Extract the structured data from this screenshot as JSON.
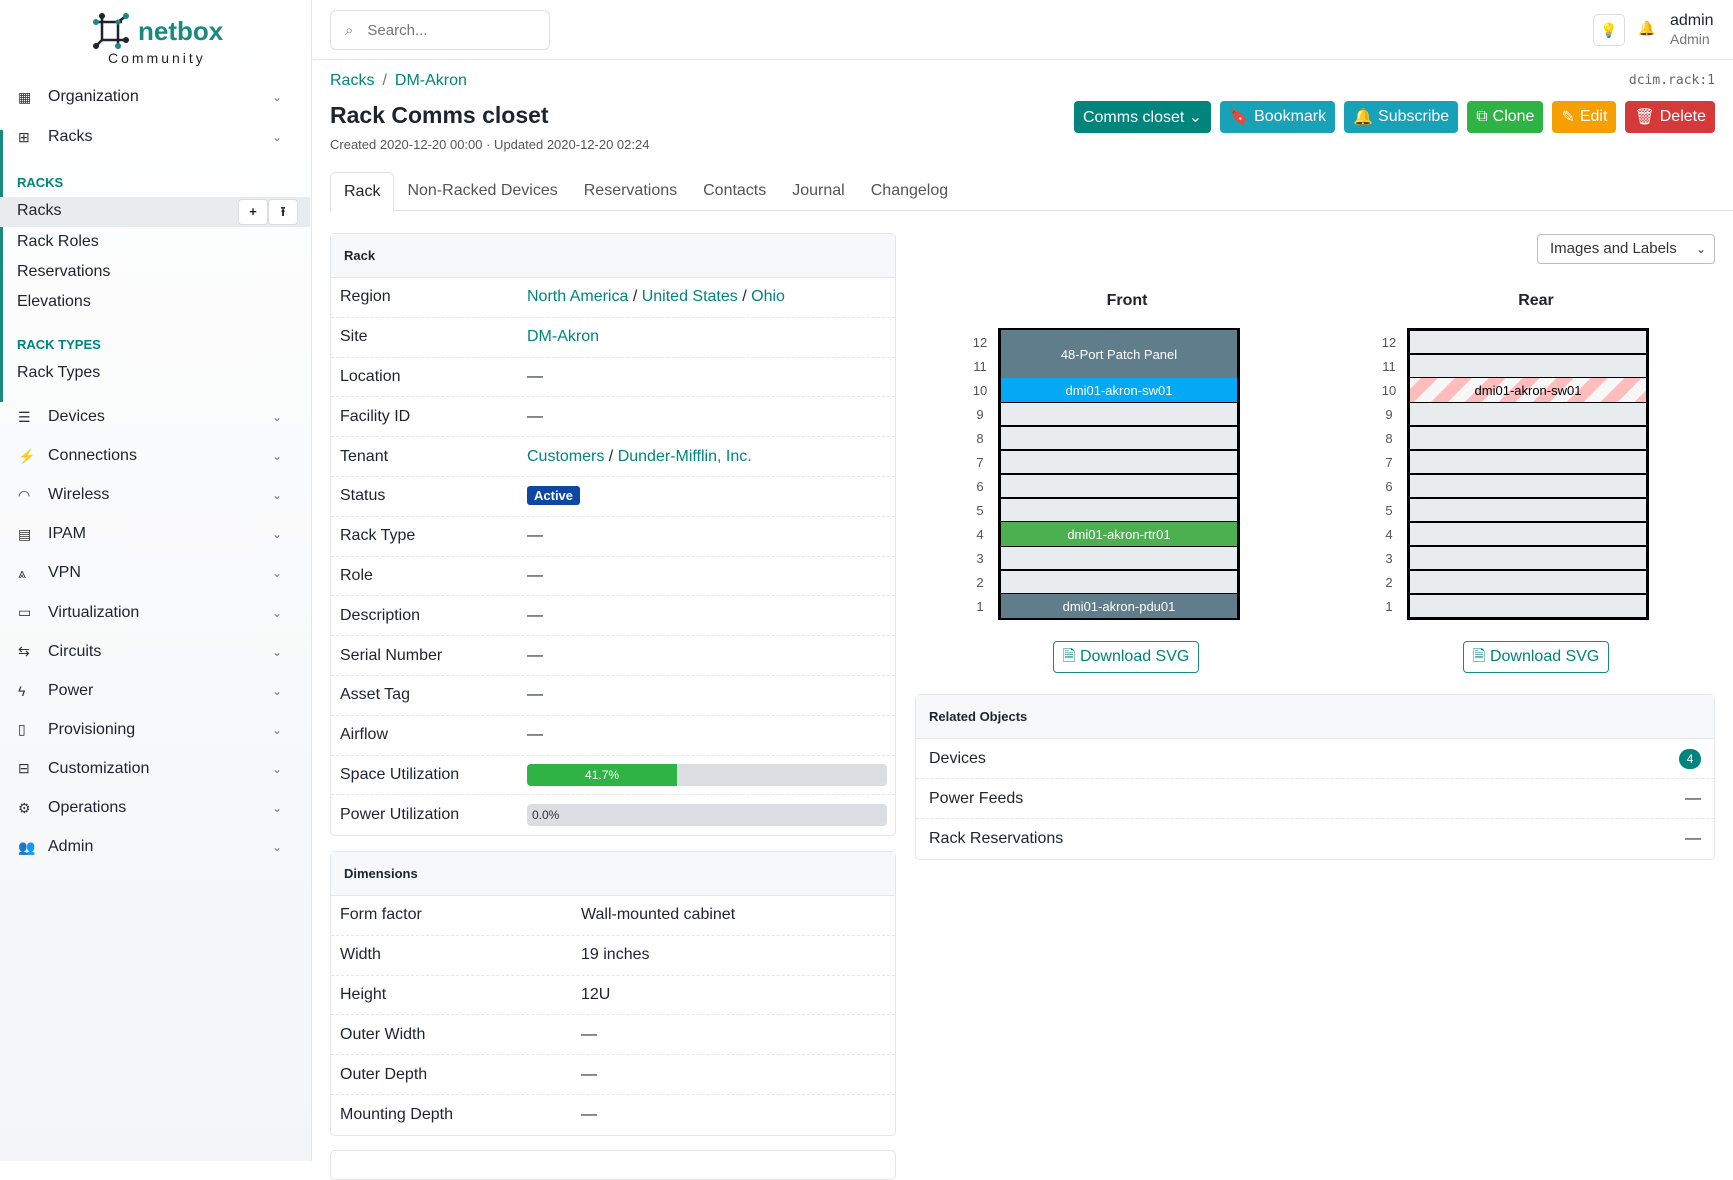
{
  "brand": {
    "name": "netbox",
    "edition": "Community"
  },
  "sidebar": {
    "groups_top": [
      {
        "label": "Organization",
        "icon": "building-icon"
      },
      {
        "label": "Racks",
        "icon": "rack-icon"
      }
    ],
    "racks_section": "RACKS",
    "racks_items": [
      "Racks",
      "Rack Roles",
      "Reservations",
      "Elevations"
    ],
    "rack_types_section": "RACK TYPES",
    "rack_types_items": [
      "Rack Types"
    ],
    "groups_bottom": [
      {
        "label": "Devices",
        "icon": "server-icon"
      },
      {
        "label": "Connections",
        "icon": "plug-icon"
      },
      {
        "label": "Wireless",
        "icon": "wifi-icon"
      },
      {
        "label": "IPAM",
        "icon": "counter-icon"
      },
      {
        "label": "VPN",
        "icon": "tunnel-icon"
      },
      {
        "label": "Virtualization",
        "icon": "monitor-icon"
      },
      {
        "label": "Circuits",
        "icon": "transit-icon"
      },
      {
        "label": "Power",
        "icon": "flash-icon"
      },
      {
        "label": "Provisioning",
        "icon": "file-document-icon"
      },
      {
        "label": "Customization",
        "icon": "toolbox-icon"
      },
      {
        "label": "Operations",
        "icon": "cogs-icon"
      },
      {
        "label": "Admin",
        "icon": "account-multiple-icon"
      }
    ],
    "add_label": "+",
    "import_label": "⭱"
  },
  "header": {
    "search_placeholder": "Search...",
    "user": "admin",
    "role": "Admin"
  },
  "breadcrumb": [
    "Racks",
    "DM-Akron"
  ],
  "object_id": "dcim.rack:1",
  "title": "Rack Comms closet",
  "meta": "Created 2020-12-20 00:00 · Updated 2020-12-20 02:24",
  "buttons": [
    {
      "label": "Comms closet ⌄",
      "color": "#00857d",
      "icon": ""
    },
    {
      "label": "Bookmark",
      "color": "#17a2b8",
      "icon": "🔖"
    },
    {
      "label": "Subscribe",
      "color": "#17a2b8",
      "icon": "🔔"
    },
    {
      "label": "Clone",
      "color": "#2fb344",
      "icon": "⧉"
    },
    {
      "label": "Edit",
      "color": "#f59f00",
      "icon": "✎"
    },
    {
      "label": "Delete",
      "color": "#d63939",
      "icon": "🗑"
    }
  ],
  "tabs": [
    "Rack",
    "Non-Racked Devices",
    "Reservations",
    "Contacts",
    "Journal",
    "Changelog"
  ],
  "rack_card": {
    "title": "Rack",
    "rows": [
      {
        "k": "Region",
        "links": [
          "North America",
          "United States",
          "Ohio"
        ]
      },
      {
        "k": "Site",
        "links": [
          "DM-Akron"
        ]
      },
      {
        "k": "Location",
        "v": "—"
      },
      {
        "k": "Facility ID",
        "v": "—"
      },
      {
        "k": "Tenant",
        "links": [
          "Customers",
          "Dunder-Mifflin, Inc."
        ]
      },
      {
        "k": "Status",
        "badge": "Active"
      },
      {
        "k": "Rack Type",
        "v": "—"
      },
      {
        "k": "Role",
        "v": "—"
      },
      {
        "k": "Description",
        "v": "—"
      },
      {
        "k": "Serial Number",
        "v": "—"
      },
      {
        "k": "Asset Tag",
        "v": "—"
      },
      {
        "k": "Airflow",
        "v": "—"
      },
      {
        "k": "Space Utilization",
        "progress": 41.7,
        "text": "41.7%"
      },
      {
        "k": "Power Utilization",
        "progress": 0,
        "text": "0.0%"
      }
    ]
  },
  "dimensions": {
    "title": "Dimensions",
    "rows": [
      [
        "Form factor",
        "Wall-mounted cabinet"
      ],
      [
        "Width",
        "19 inches"
      ],
      [
        "Height",
        "12U"
      ],
      [
        "Outer Width",
        "—"
      ],
      [
        "Outer Depth",
        "—"
      ],
      [
        "Mounting Depth",
        "—"
      ]
    ]
  },
  "elevation": {
    "view_select": "Images and Labels",
    "front_label": "Front",
    "rear_label": "Rear",
    "units": 12,
    "download_label": "Download SVG",
    "front": [
      {
        "name": "48-Port Patch Panel",
        "u": 11,
        "h": 2,
        "color": "#607d8b"
      },
      {
        "name": "dmi01-akron-sw01",
        "u": 10,
        "h": 1,
        "color": "#03a9f4"
      },
      {
        "name": "dmi01-akron-rtr01",
        "u": 4,
        "h": 1,
        "color": "#4caf50"
      },
      {
        "name": "dmi01-akron-pdu01",
        "u": 1,
        "h": 1,
        "color": "#607d8b"
      }
    ],
    "rear": [
      {
        "name": "dmi01-akron-sw01",
        "u": 10,
        "h": 1,
        "color": "#ffbcbc",
        "striped": true
      }
    ]
  },
  "related": {
    "title": "Related Objects",
    "rows": [
      {
        "label": "Devices",
        "count": "4"
      },
      {
        "label": "Power Feeds",
        "count": "—"
      },
      {
        "label": "Rack Reservations",
        "count": "—"
      }
    ]
  }
}
